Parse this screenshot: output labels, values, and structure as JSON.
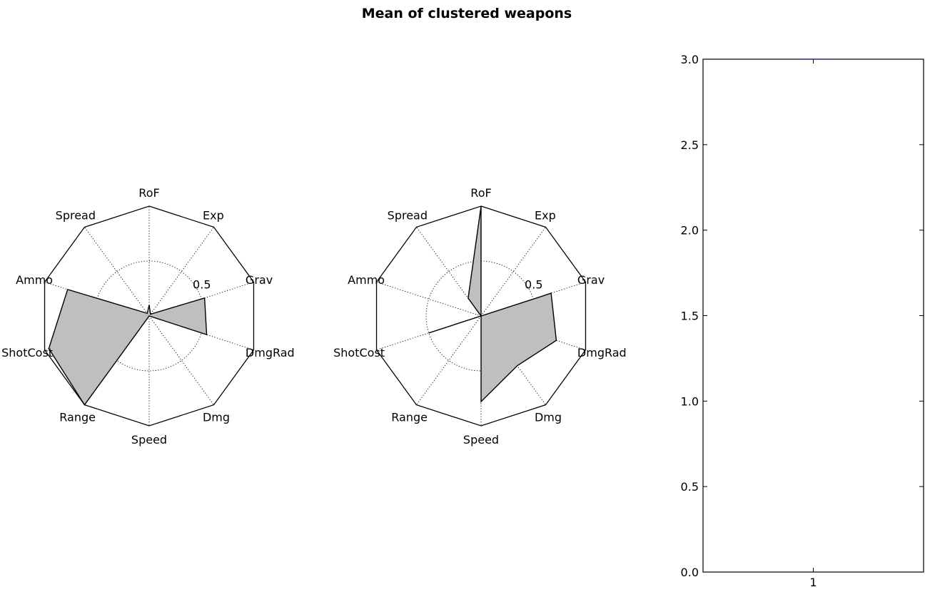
{
  "figure": {
    "title": "Mean of clustered weapons"
  },
  "chart_data": [
    {
      "type": "radar",
      "axes": [
        "RoF",
        "Exp",
        "Grav",
        "DmgRad",
        "Dmg",
        "Speed",
        "Range",
        "ShotCost",
        "Ammo",
        "Spread"
      ],
      "values": [
        0.1,
        0.02,
        0.53,
        0.55,
        0.0,
        0.0,
        1.0,
        0.96,
        0.78,
        0.03
      ],
      "rmax": 1.0,
      "radial_ticks": [
        0.5
      ],
      "radial_tick_labels": [
        "0.5"
      ],
      "grid": true,
      "fill_color": "#bfbfbf",
      "line_color": "#000000"
    },
    {
      "type": "radar",
      "axes": [
        "RoF",
        "Exp",
        "Grav",
        "DmgRad",
        "Dmg",
        "Speed",
        "Range",
        "ShotCost",
        "Ammo",
        "Spread"
      ],
      "values": [
        1.0,
        0.0,
        0.67,
        0.72,
        0.56,
        0.78,
        0.0,
        0.5,
        0.0,
        0.2
      ],
      "rmax": 1.0,
      "radial_ticks": [
        0.5
      ],
      "radial_tick_labels": [
        "0.5"
      ],
      "grid": true,
      "fill_color": "#bfbfbf",
      "line_color": "#000000"
    },
    {
      "type": "bar",
      "categories": [
        "1"
      ],
      "values": [
        3.0
      ],
      "ylim": [
        0,
        3.0
      ],
      "yticks": [
        "0.0",
        "0.5",
        "1.0",
        "1.5",
        "2.0",
        "2.5",
        "3.0"
      ],
      "ytick_values": [
        0,
        0.5,
        1.0,
        1.5,
        2.0,
        2.5,
        3.0
      ],
      "xticks": [
        "1"
      ],
      "xlim": [
        0.5,
        1.5
      ],
      "grid": false,
      "marker_color": "#3a2f7a"
    }
  ]
}
